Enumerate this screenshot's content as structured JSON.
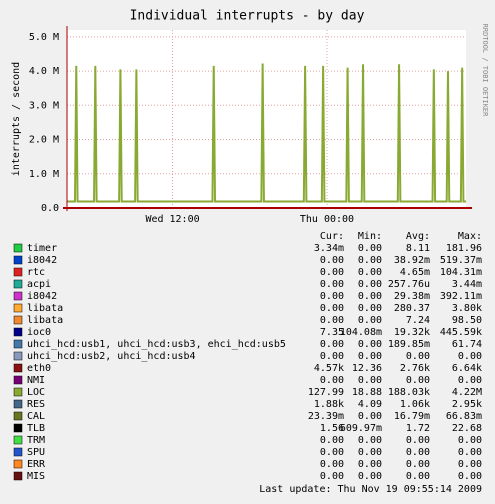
{
  "chart_data": {
    "type": "line",
    "title": "Individual interrupts - by day",
    "y_label": "interrupts / second",
    "side_text": "RRDTOOL / TOBI OETIKER",
    "footer": "Last update: Thu Nov 19 09:55:14 2009",
    "xlim": [
      3.8,
      34.8
    ],
    "xticks": [
      {
        "value": 12,
        "label": "Wed 12:00"
      },
      {
        "value": 24,
        "label": "Thu 00:00"
      }
    ],
    "ylim": [
      0,
      5200000
    ],
    "yticks": [
      {
        "value": 0,
        "label": "0.0"
      },
      {
        "value": 1000000,
        "label": "1.0 M"
      },
      {
        "value": 2000000,
        "label": "2.0 M"
      },
      {
        "value": 3000000,
        "label": "3.0 M"
      },
      {
        "value": 4000000,
        "label": "4.0 M"
      },
      {
        "value": 5000000,
        "label": "5.0 M"
      }
    ],
    "grid": true,
    "x": [
      3.8,
      4.42,
      4.52,
      4.62,
      5.9,
      6.0,
      6.1,
      7.85,
      7.95,
      8.05,
      9.09,
      9.19,
      9.29,
      15.1,
      15.2,
      15.3,
      18.9,
      19.0,
      19.1,
      22.2,
      22.3,
      22.4,
      23.6,
      23.7,
      23.8,
      25.5,
      25.6,
      25.7,
      26.7,
      26.8,
      26.9,
      29.5,
      29.6,
      29.7,
      32.2,
      32.3,
      32.4,
      33.3,
      33.4,
      33.5,
      34.4,
      34.5,
      34.6,
      34.8
    ],
    "series": [
      {
        "color": "#88aa33",
        "values": [
          190000,
          190000,
          4150000,
          190000,
          190000,
          4150000,
          190000,
          190000,
          4050000,
          190000,
          190000,
          4050000,
          190000,
          190000,
          4150000,
          190000,
          190000,
          4220000,
          190000,
          190000,
          4150000,
          190000,
          190000,
          4150000,
          190000,
          190000,
          4100000,
          190000,
          190000,
          4200000,
          190000,
          190000,
          4200000,
          190000,
          190000,
          4050000,
          190000,
          190000,
          4000000,
          190000,
          190000,
          4100000,
          190000,
          190000
        ]
      }
    ],
    "stats": {
      "headers": [
        "Cur:",
        "Min:",
        "Avg:",
        "Max:"
      ],
      "rows": [
        {
          "name": "timer",
          "color": "#22cc44",
          "cells": [
            "3.34m",
            "0.00",
            "8.11",
            "181.96"
          ]
        },
        {
          "name": "i8042",
          "color": "#0044cc",
          "cells": [
            "0.00",
            "0.00",
            "38.92m",
            "519.37m"
          ]
        },
        {
          "name": "rtc",
          "color": "#dd2222",
          "cells": [
            "0.00",
            "0.00",
            "4.65m",
            "104.31m"
          ]
        },
        {
          "name": "acpi",
          "color": "#22aa99",
          "cells": [
            "0.00",
            "0.00",
            "257.76u",
            "3.44m"
          ]
        },
        {
          "name": "i8042",
          "color": "#cc33cc",
          "cells": [
            "0.00",
            "0.00",
            "29.38m",
            "392.11m"
          ]
        },
        {
          "name": "libata",
          "color": "#ffaa33",
          "cells": [
            "0.00",
            "0.00",
            "280.37",
            "3.80k"
          ]
        },
        {
          "name": "libata",
          "color": "#ee8833",
          "cells": [
            "0.00",
            "0.00",
            "7.24",
            "98.50"
          ]
        },
        {
          "name": "ioc0",
          "color": "#000088",
          "cells": [
            "7.35",
            "104.08m",
            "19.32k",
            "445.59k"
          ]
        },
        {
          "name": "uhci_hcd:usb1, uhci_hcd:usb3, ehci_hcd:usb5",
          "color": "#4477aa",
          "cells": [
            "0.00",
            "0.00",
            "189.85m",
            "61.74"
          ]
        },
        {
          "name": "uhci_hcd:usb2, uhci_hcd:usb4",
          "color": "#8899bb",
          "cells": [
            "0.00",
            "0.00",
            "0.00",
            "0.00"
          ]
        },
        {
          "name": "eth0",
          "color": "#881111",
          "cells": [
            "4.57k",
            "12.36",
            "2.76k",
            "6.64k"
          ]
        },
        {
          "name": "NMI",
          "color": "#770077",
          "cells": [
            "0.00",
            "0.00",
            "0.00",
            "0.00"
          ]
        },
        {
          "name": "LOC",
          "color": "#88aa33",
          "cells": [
            "127.99",
            "18.88",
            "188.03k",
            "4.22M"
          ]
        },
        {
          "name": "RES",
          "color": "#446688",
          "cells": [
            "1.88k",
            "4.09",
            "1.06k",
            "2.95k"
          ]
        },
        {
          "name": "CAL",
          "color": "#667722",
          "cells": [
            "23.39m",
            "0.00",
            "16.79m",
            "66.83m"
          ]
        },
        {
          "name": "TLB",
          "color": "#000000",
          "cells": [
            "1.56",
            "609.97m",
            "1.72",
            "22.68"
          ]
        },
        {
          "name": "TRM",
          "color": "#44dd44",
          "cells": [
            "0.00",
            "0.00",
            "0.00",
            "0.00"
          ]
        },
        {
          "name": "SPU",
          "color": "#2255cc",
          "cells": [
            "0.00",
            "0.00",
            "0.00",
            "0.00"
          ]
        },
        {
          "name": "ERR",
          "color": "#ff8822",
          "cells": [
            "0.00",
            "0.00",
            "0.00",
            "0.00"
          ]
        },
        {
          "name": "MIS",
          "color": "#661111",
          "cells": [
            "0.00",
            "0.00",
            "0.00",
            "0.00"
          ]
        }
      ]
    }
  }
}
